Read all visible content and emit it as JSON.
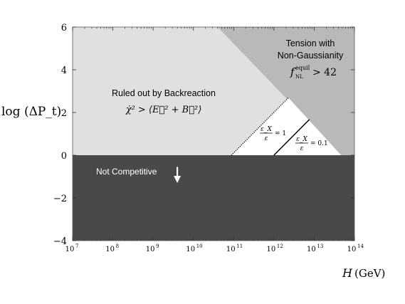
{
  "chart_data": {
    "type": "area",
    "xscale": "log",
    "xlim": [
      10000000.0,
      100000000000000.0
    ],
    "ylim": [
      -4,
      6
    ],
    "xlabel_var": "H",
    "xlabel_unit": "(GeV)",
    "ylabel": "log (ΔP_t)",
    "yticks": [
      {
        "v": -4,
        "label": "−4"
      },
      {
        "v": -2,
        "label": "−2"
      },
      {
        "v": 0,
        "label": "0"
      },
      {
        "v": 2,
        "label": "2"
      },
      {
        "v": 4,
        "label": "4"
      },
      {
        "v": 6,
        "label": "6"
      }
    ],
    "xticks": [
      7,
      8,
      9,
      10,
      11,
      12,
      13,
      14
    ],
    "regions": [
      {
        "name": "backreaction",
        "label": "Ruled out by Backreaction",
        "condition": "χ̇² > ⟨E⃗² + B⃗²⟩",
        "color": "#e0e0e0",
        "polygon": [
          [
            7,
            0
          ],
          [
            10.945,
            0
          ],
          [
            12.36,
            2.69
          ],
          [
            10.6,
            6
          ],
          [
            7,
            6
          ]
        ]
      },
      {
        "name": "non_gaussianity",
        "label_line1": "Tension with",
        "label_line2": "Non-Gaussianity",
        "condition_lhs": "f",
        "condition_sup": "equil",
        "condition_sub": "NL",
        "condition_rhs": "> 42",
        "color": "#b9b9b9",
        "polygon": [
          [
            10.6,
            6
          ],
          [
            14,
            6
          ],
          [
            14,
            0
          ],
          [
            13.67,
            0
          ]
        ]
      },
      {
        "name": "allowed",
        "color": "#ffffff",
        "polygon": [
          [
            10.945,
            0
          ],
          [
            13.67,
            0
          ],
          [
            12.36,
            2.69
          ]
        ]
      },
      {
        "name": "not_competitive",
        "label": "Not Competitive",
        "color": "#494949",
        "polygon": [
          [
            7,
            0
          ],
          [
            14,
            0
          ],
          [
            14,
            -4
          ],
          [
            7,
            -4
          ]
        ]
      }
    ],
    "lines": [
      {
        "name": "eps_ratio_1",
        "style": "dotted",
        "from": [
          10.945,
          0
        ],
        "to": [
          12.36,
          2.69
        ],
        "label_num": "ε_X",
        "label_den": "ε",
        "label_rhs": "= 1"
      },
      {
        "name": "eps_ratio_0.1",
        "style": "solid",
        "from": [
          12.0,
          0
        ],
        "to": [
          12.88,
          1.67
        ],
        "label_num": "ε_X",
        "label_den": "ε",
        "label_rhs": "= 0.1"
      }
    ],
    "arrow": {
      "x": 9.6,
      "from_y": -0.55,
      "to_y": -1.3,
      "color": "#ffffff"
    }
  }
}
